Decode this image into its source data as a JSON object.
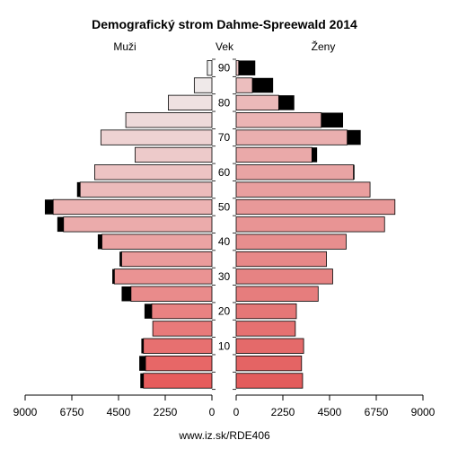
{
  "chart_data": {
    "type": "bar",
    "title": "Demografický strom Dahme-Spreewald 2014",
    "left_label": "Muži",
    "center_label": "Vek",
    "right_label": "Ženy",
    "footer": "www.iz.sk/RDE406",
    "x_max": 9000,
    "x_ticks": [
      {
        "value": 9000,
        "label": "9000"
      },
      {
        "value": 6750,
        "label": "6750"
      },
      {
        "value": 4500,
        "label": "4500"
      },
      {
        "value": 2250,
        "label": "2250"
      },
      {
        "value": 0,
        "label": "0"
      }
    ],
    "age_ticks": [
      "10",
      "20",
      "30",
      "40",
      "50",
      "60",
      "70",
      "80",
      "90"
    ],
    "age_groups": [
      "0-4",
      "5-9",
      "10-14",
      "15-19",
      "20-24",
      "25-29",
      "30-34",
      "35-39",
      "40-44",
      "45-49",
      "50-54",
      "55-59",
      "60-64",
      "65-69",
      "70-74",
      "75-79",
      "80-84",
      "85-89",
      "90+"
    ],
    "series": [
      {
        "name": "Muži",
        "values": [
          3300,
          3200,
          3300,
          2850,
          2900,
          3900,
          4700,
          4350,
          5300,
          7150,
          7650,
          6350,
          5650,
          3700,
          5350,
          4150,
          2100,
          850,
          220
        ]
      },
      {
        "name": "Ženy",
        "values": [
          3200,
          3150,
          3250,
          2850,
          2900,
          3950,
          4650,
          4350,
          5300,
          7150,
          7650,
          6450,
          5650,
          3650,
          5350,
          4100,
          2050,
          780,
          120
        ]
      }
    ],
    "excess_male": [
      150,
      300,
      100,
      0,
      350,
      450,
      100,
      100,
      200,
      300,
      400,
      150,
      0,
      0,
      0,
      0,
      0,
      0,
      0
    ],
    "excess_female": [
      0,
      0,
      0,
      0,
      0,
      0,
      0,
      0,
      0,
      0,
      0,
      0,
      50,
      250,
      650,
      1050,
      750,
      1000,
      800
    ],
    "colors": {
      "male_start": "#e65c5c",
      "male_end": "#f0f0f0",
      "female_start": "#e35c5c",
      "female_end": "#f0f0f0",
      "excess": "#000000"
    }
  }
}
